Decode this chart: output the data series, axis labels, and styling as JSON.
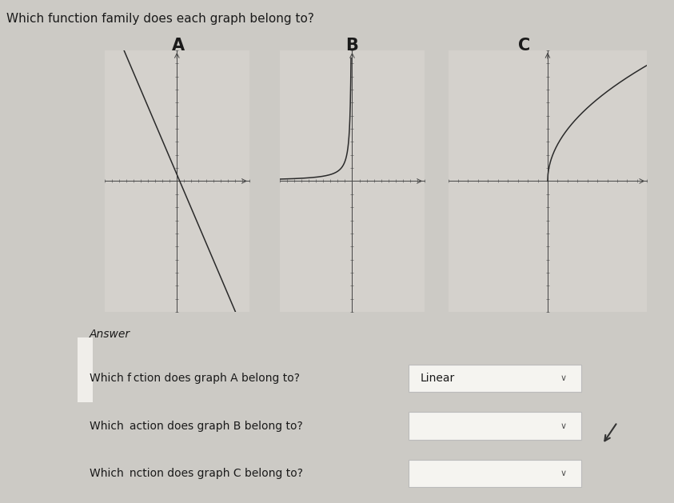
{
  "title": "Which function family does each graph belong to?",
  "title_fontsize": 11,
  "title_color": "#1a1a1a",
  "bg_color": "#cccac5",
  "graph_bg": "#d4d1cc",
  "graph_labels": [
    "A",
    "B",
    "C"
  ],
  "answer_label": "Answer",
  "q1": "Which f ction does graph A belong to?",
  "q1_answer": "Linear",
  "q2": "Which  action does graph B belong to?",
  "q3": "Which  nction does graph C belong to?",
  "axis_color": "#444444",
  "curve_color": "#2a2a2a",
  "tick_color": "#666666",
  "dropdown_bg": "#f5f4f0",
  "dropdown_border": "#bbbbbb",
  "bottom_bg": "#dedad5",
  "left_panel_color": "#b0aca6"
}
